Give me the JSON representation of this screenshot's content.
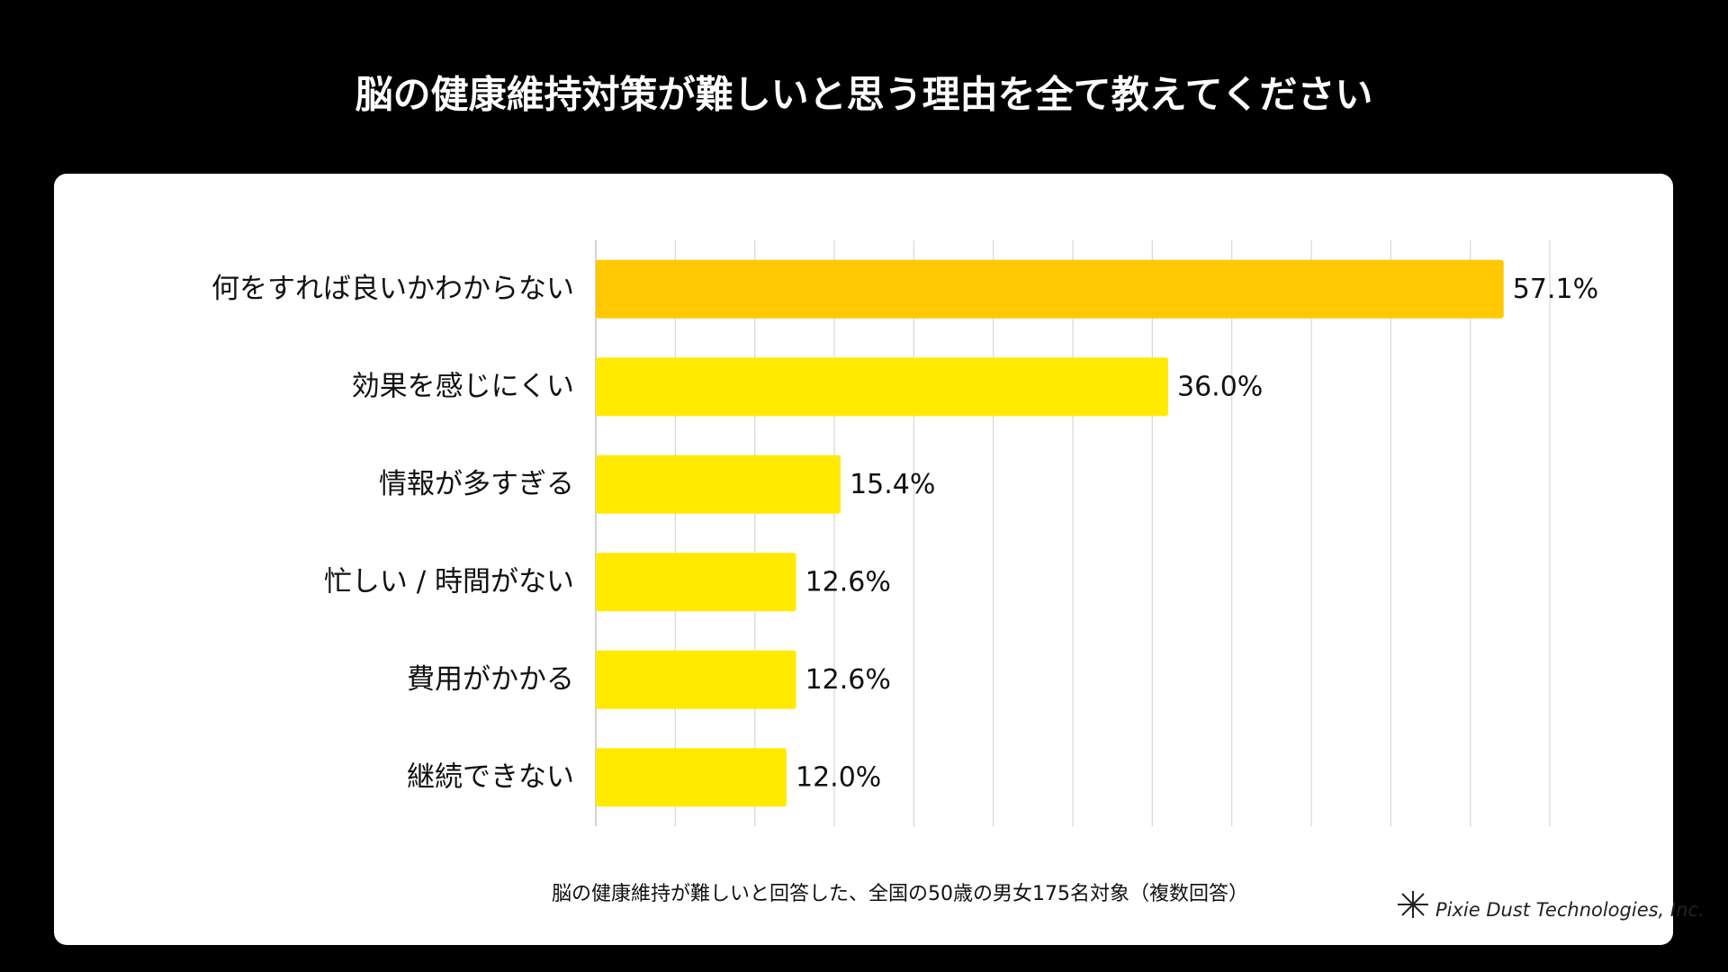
{
  "chart_data": {
    "type": "bar",
    "orientation": "horizontal",
    "title": "脳の健康維持対策が難しいと思う理由を全て教えてください",
    "categories": [
      "何をすれば良いかわからない",
      "効果を感じにくい",
      "情報が多すぎる",
      "忙しい / 時間がない",
      "費用がかかる",
      "継続できない"
    ],
    "values": [
      57.1,
      36.0,
      15.4,
      12.6,
      12.6,
      12.0
    ],
    "value_labels": [
      "57.1%",
      "36.0%",
      "15.4%",
      "12.6%",
      "12.6%",
      "12.0%"
    ],
    "colors": [
      "#ffc800",
      "#ffea00",
      "#ffea00",
      "#ffea00",
      "#ffea00",
      "#ffea00"
    ],
    "xlim": [
      0,
      60
    ],
    "xticks": [
      0,
      5,
      10,
      15,
      20,
      25,
      30,
      35,
      40,
      45,
      50,
      55,
      60
    ],
    "grid": true,
    "note": "脳の健康維持が難しいと回答した、全国の50歳の男女175名対象（複数回答）",
    "credit": "Pixie Dust Technologies, Inc."
  }
}
